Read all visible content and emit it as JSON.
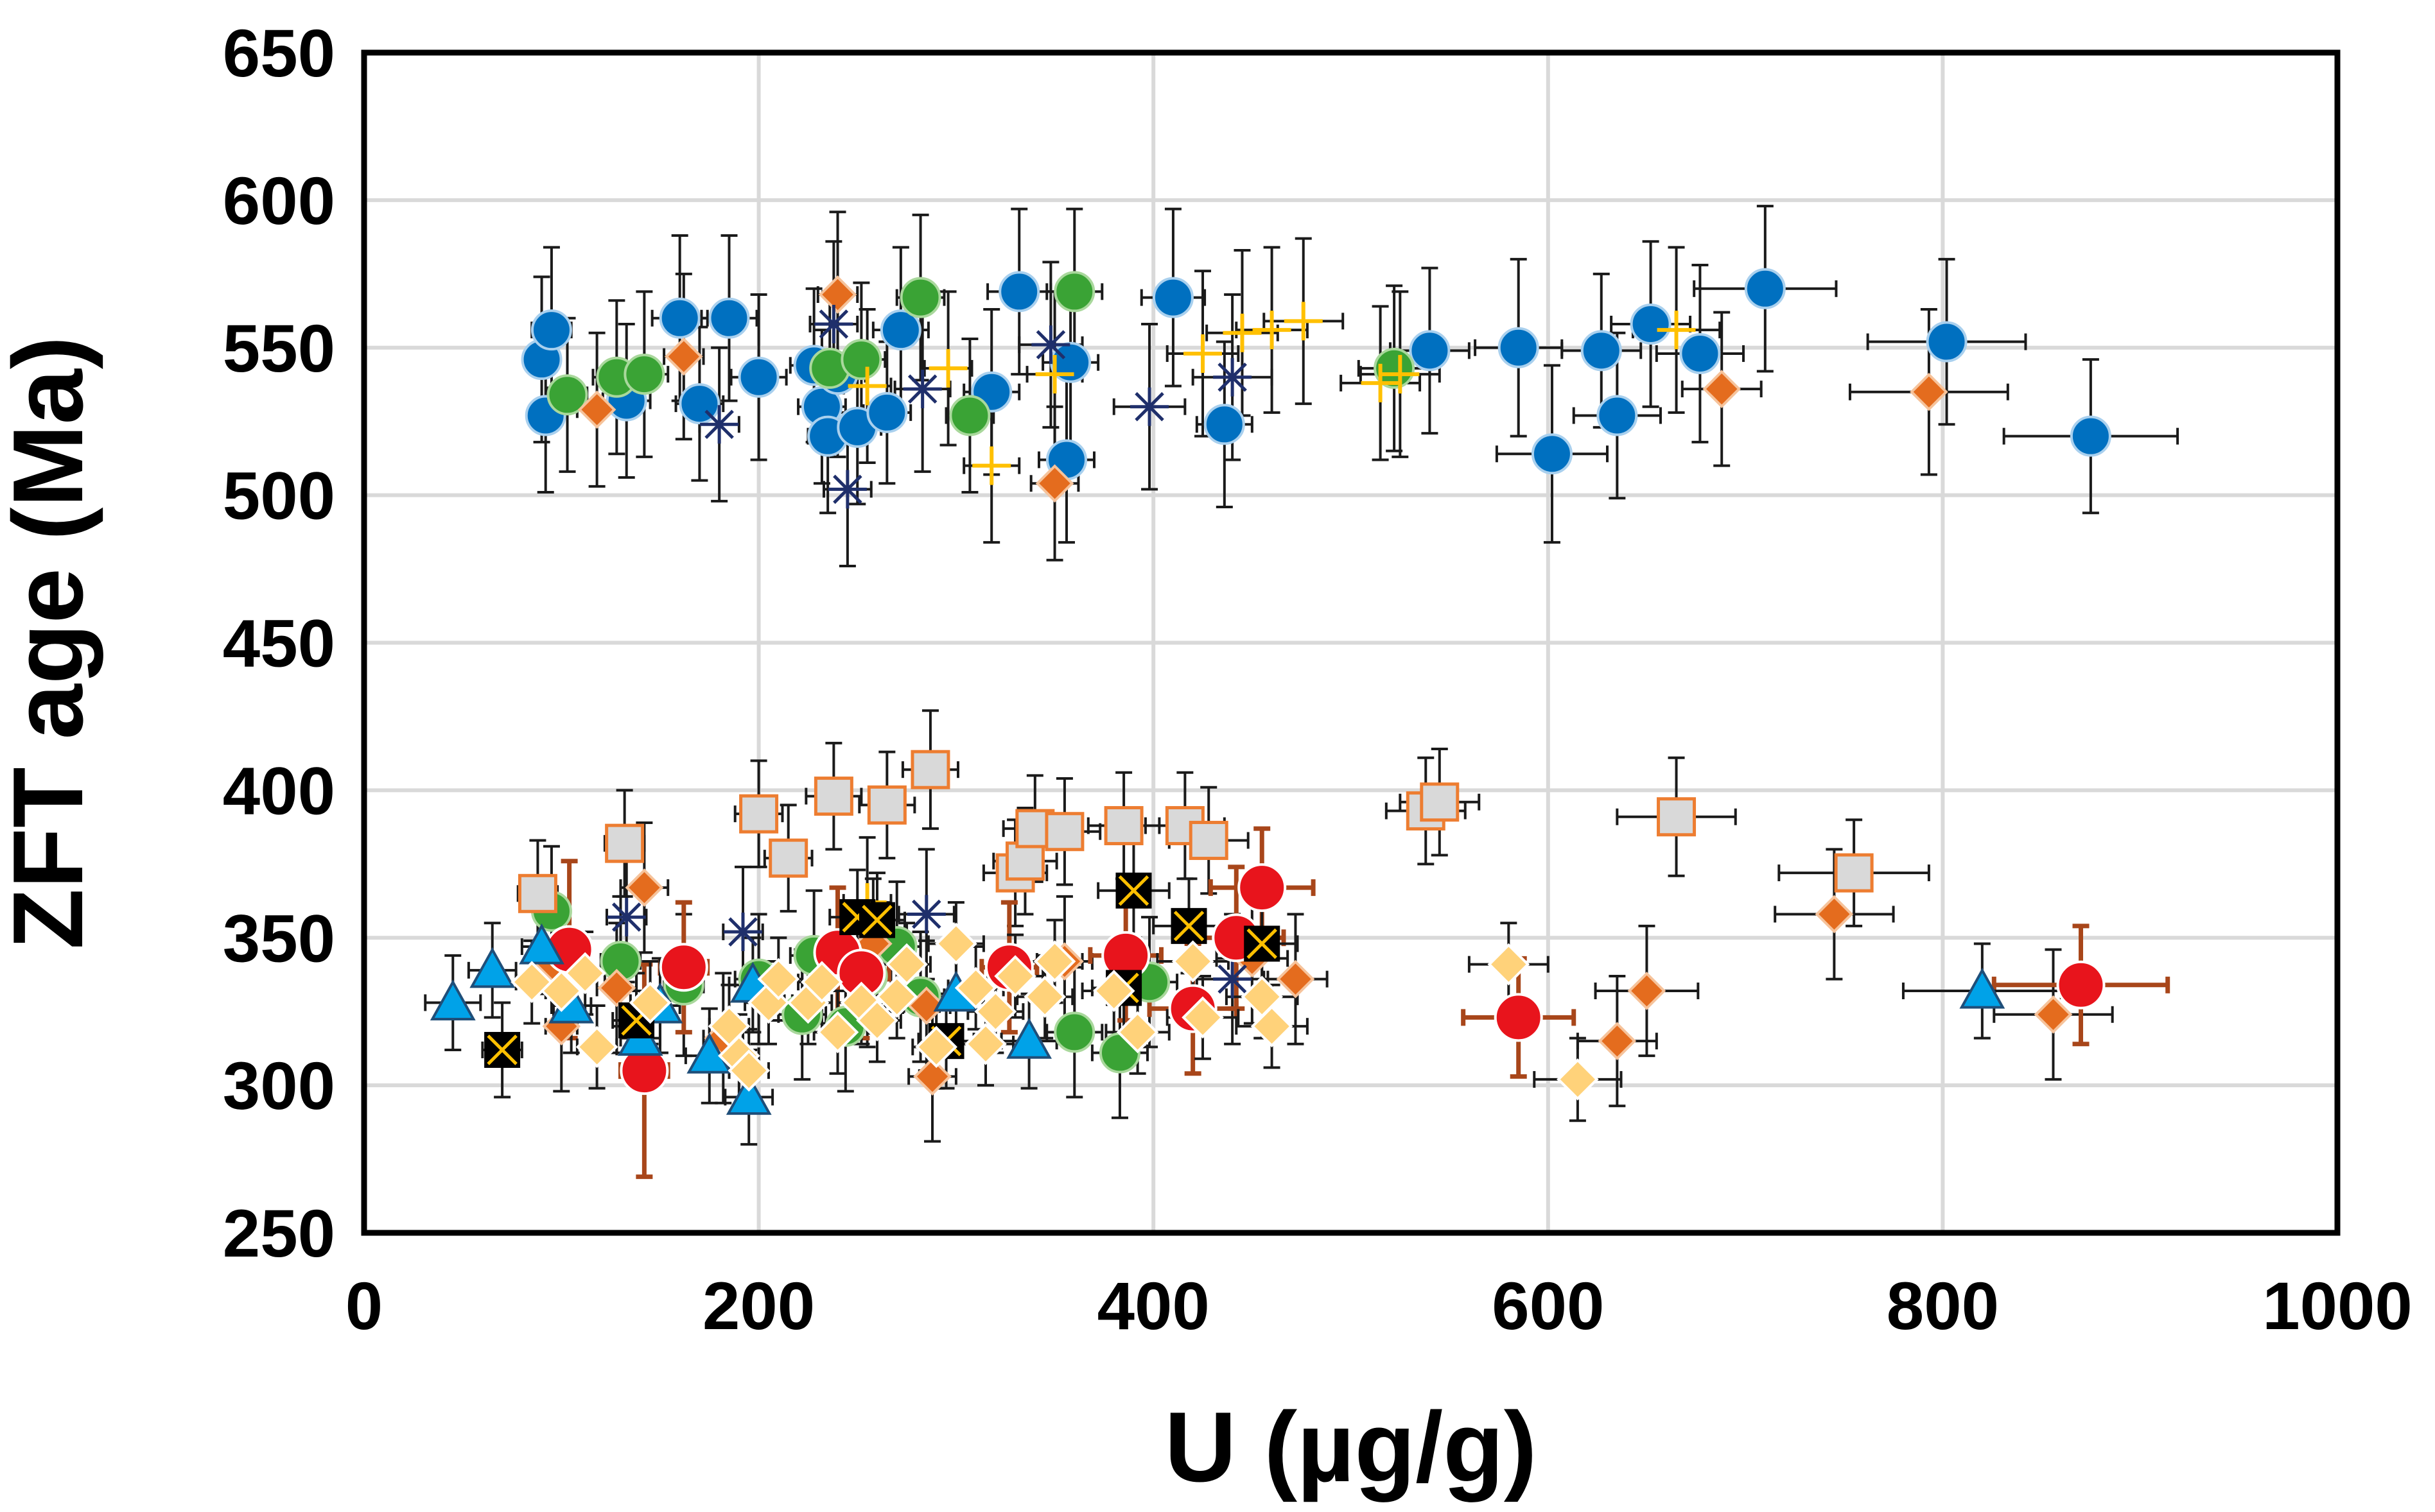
{
  "chart_data": {
    "type": "scatter",
    "title": "",
    "xlabel": "U (µg/g)",
    "ylabel": "ZFT age (Ma)",
    "xlim": [
      0,
      1000
    ],
    "ylim": [
      250,
      650
    ],
    "xticks": [
      "0",
      "200",
      "400",
      "600",
      "800",
      "1000"
    ],
    "yticks": [
      "250",
      "300",
      "350",
      "400",
      "450",
      "500",
      "550",
      "600",
      "650"
    ],
    "grid": true,
    "legend": "none",
    "series": [
      {
        "marker": "circle",
        "fill": "#0070C0",
        "stroke": "#A9D0EE",
        "points": [
          [
            90,
            546,
            8,
            28
          ],
          [
            92,
            527,
            8,
            26
          ],
          [
            95,
            556,
            10,
            28
          ],
          [
            133,
            532,
            12,
            26
          ],
          [
            160,
            560,
            14,
            28
          ],
          [
            170,
            531,
            12,
            26
          ],
          [
            185,
            560,
            14,
            28
          ],
          [
            200,
            540,
            14,
            28
          ],
          [
            228,
            544,
            12,
            26
          ],
          [
            232,
            530,
            12,
            26
          ],
          [
            235,
            520,
            10,
            26
          ],
          [
            240,
            541,
            14,
            28
          ],
          [
            250,
            523,
            12,
            26
          ],
          [
            265,
            528,
            12,
            24
          ],
          [
            272,
            556,
            14,
            28
          ],
          [
            318,
            535,
            14,
            28
          ],
          [
            332,
            569,
            16,
            28
          ],
          [
            356,
            512,
            14,
            28
          ],
          [
            358,
            545,
            14,
            28
          ],
          [
            410,
            567,
            16,
            30
          ],
          [
            436,
            524,
            14,
            28
          ],
          [
            540,
            549,
            20,
            28
          ],
          [
            585,
            550,
            22,
            30
          ],
          [
            602,
            514,
            28,
            30
          ],
          [
            627,
            549,
            20,
            26
          ],
          [
            635,
            527,
            22,
            28
          ],
          [
            652,
            558,
            20,
            28
          ],
          [
            677,
            548,
            22,
            30
          ],
          [
            710,
            570,
            36,
            28
          ],
          [
            802,
            552,
            40,
            28
          ],
          [
            875,
            520,
            44,
            26
          ]
        ]
      },
      {
        "marker": "circle",
        "fill": "#3AA335",
        "stroke": "#A9D89C",
        "points": [
          [
            103,
            534,
            10,
            26
          ],
          [
            128,
            540,
            12,
            26
          ],
          [
            142,
            541,
            12,
            28
          ],
          [
            236,
            543,
            12,
            26
          ],
          [
            252,
            546,
            12,
            26
          ],
          [
            282,
            567,
            12,
            28
          ],
          [
            307,
            527,
            12,
            26
          ],
          [
            360,
            569,
            14,
            28
          ],
          [
            522,
            543,
            18,
            28
          ],
          [
            95,
            359,
            8,
            22
          ],
          [
            130,
            342,
            10,
            22
          ],
          [
            162,
            334,
            10,
            24
          ],
          [
            200,
            336,
            12,
            22
          ],
          [
            222,
            324,
            12,
            22
          ],
          [
            228,
            344,
            12,
            22
          ],
          [
            244,
            320,
            12,
            22
          ],
          [
            255,
            337,
            12,
            24
          ],
          [
            270,
            347,
            12,
            22
          ],
          [
            282,
            330,
            12,
            22
          ],
          [
            360,
            318,
            14,
            22
          ],
          [
            383,
            311,
            14,
            22
          ],
          [
            398,
            335,
            14,
            22
          ]
        ]
      },
      {
        "marker": "diamond",
        "fill": "#E46C1E",
        "stroke": "#F6C39B",
        "points": [
          [
            118,
            529,
            10,
            26
          ],
          [
            162,
            547,
            10,
            28
          ],
          [
            240,
            568,
            10,
            28
          ],
          [
            350,
            504,
            12,
            26
          ],
          [
            688,
            536,
            20,
            26
          ],
          [
            793,
            535,
            40,
            28
          ],
          [
            96,
            341,
            8,
            22
          ],
          [
            100,
            320,
            8,
            22
          ],
          [
            128,
            333,
            10,
            22
          ],
          [
            142,
            367,
            12,
            22
          ],
          [
            182,
            316,
            10,
            22
          ],
          [
            258,
            348,
            12,
            22
          ],
          [
            285,
            327,
            12,
            22
          ],
          [
            288,
            303,
            12,
            22
          ],
          [
            355,
            342,
            14,
            22
          ],
          [
            450,
            343,
            18,
            22
          ],
          [
            472,
            336,
            16,
            22
          ],
          [
            635,
            315,
            20,
            22
          ],
          [
            650,
            332,
            26,
            22
          ],
          [
            745,
            358,
            30,
            22
          ],
          [
            856,
            324,
            30,
            22
          ]
        ]
      },
      {
        "marker": "star",
        "color": "#1F2F6B",
        "points": [
          [
            180,
            524,
            10,
            26
          ],
          [
            238,
            558,
            12,
            28
          ],
          [
            245,
            502,
            12,
            26
          ],
          [
            283,
            536,
            14,
            28
          ],
          [
            348,
            551,
            16,
            28
          ],
          [
            398,
            530,
            18,
            28
          ],
          [
            440,
            540,
            20,
            28
          ],
          [
            133,
            357,
            10,
            22
          ],
          [
            192,
            352,
            10,
            22
          ],
          [
            285,
            358,
            14,
            22
          ],
          [
            440,
            336,
            18,
            22
          ]
        ]
      },
      {
        "marker": "plus",
        "color": "#FFC000",
        "points": [
          [
            255,
            537,
            12,
            26
          ],
          [
            296,
            543,
            12,
            26
          ],
          [
            318,
            510,
            14,
            26
          ],
          [
            350,
            541,
            14,
            28
          ],
          [
            425,
            548,
            18,
            28
          ],
          [
            445,
            555,
            18,
            28
          ],
          [
            460,
            556,
            18,
            28
          ],
          [
            476,
            559,
            20,
            28
          ],
          [
            515,
            538,
            20,
            26
          ],
          [
            525,
            541,
            20,
            28
          ],
          [
            665,
            556,
            22,
            28
          ],
          [
            255,
            362,
            12,
            22
          ]
        ]
      },
      {
        "marker": "square",
        "fill": "#D9D9D9",
        "stroke": "#ED7D31",
        "points": [
          [
            88,
            365,
            10,
            18
          ],
          [
            132,
            382,
            10,
            18
          ],
          [
            200,
            392,
            12,
            18
          ],
          [
            215,
            377,
            12,
            18
          ],
          [
            238,
            398,
            14,
            18
          ],
          [
            265,
            395,
            14,
            18
          ],
          [
            287,
            407,
            14,
            20
          ],
          [
            330,
            372,
            16,
            18
          ],
          [
            335,
            376,
            16,
            18
          ],
          [
            340,
            387,
            16,
            18
          ],
          [
            355,
            386,
            18,
            18
          ],
          [
            385,
            388,
            18,
            18
          ],
          [
            416,
            388,
            20,
            18
          ],
          [
            428,
            383,
            20,
            18
          ],
          [
            538,
            393,
            20,
            18
          ],
          [
            545,
            396,
            20,
            18
          ],
          [
            665,
            391,
            30,
            20
          ],
          [
            755,
            372,
            38,
            18
          ]
        ]
      },
      {
        "marker": "circle",
        "fill": "#E8141C",
        "stroke": "#FFFFFF",
        "errcolor": "#A8461A",
        "points": [
          [
            104,
            346,
            10,
            30
          ],
          [
            142,
            305,
            12,
            36
          ],
          [
            162,
            340,
            12,
            22
          ],
          [
            240,
            345,
            14,
            22
          ],
          [
            252,
            338,
            14,
            22
          ],
          [
            327,
            340,
            14,
            22
          ],
          [
            386,
            344,
            18,
            22
          ],
          [
            420,
            326,
            22,
            22
          ],
          [
            442,
            350,
            24,
            24
          ],
          [
            455,
            367,
            26,
            20
          ],
          [
            585,
            323,
            28,
            20
          ],
          [
            870,
            334,
            44,
            20
          ]
        ]
      },
      {
        "marker": "triangle",
        "fill": "#00A2E8",
        "stroke": "#1F4E79",
        "points": [
          [
            45,
            328,
            14,
            16
          ],
          [
            65,
            339,
            12,
            16
          ],
          [
            90,
            347,
            10,
            16
          ],
          [
            105,
            327,
            10,
            16
          ],
          [
            140,
            316,
            10,
            16
          ],
          [
            150,
            327,
            10,
            16
          ],
          [
            175,
            310,
            12,
            16
          ],
          [
            195,
            296,
            12,
            16
          ],
          [
            197,
            334,
            12,
            16
          ],
          [
            300,
            331,
            14,
            16
          ],
          [
            337,
            315,
            14,
            16
          ],
          [
            820,
            332,
            40,
            16
          ]
        ]
      },
      {
        "marker": "squarex",
        "fill": "#000000",
        "stroke": "#FFC000",
        "points": [
          [
            70,
            312,
            10,
            16
          ],
          [
            138,
            322,
            12,
            16
          ],
          [
            250,
            357,
            14,
            16
          ],
          [
            260,
            356,
            14,
            16
          ],
          [
            295,
            315,
            14,
            16
          ],
          [
            385,
            333,
            16,
            16
          ],
          [
            390,
            366,
            18,
            16
          ],
          [
            418,
            354,
            18,
            16
          ],
          [
            455,
            348,
            18,
            16
          ]
        ]
      },
      {
        "marker": "diamond",
        "fill": "#FFD27A",
        "stroke": "#FFFFFF",
        "points": [
          [
            85,
            335,
            8,
            14
          ],
          [
            100,
            332,
            8,
            14
          ],
          [
            112,
            338,
            10,
            14
          ],
          [
            118,
            313,
            10,
            14
          ],
          [
            145,
            328,
            10,
            14
          ],
          [
            185,
            320,
            10,
            14
          ],
          [
            190,
            310,
            10,
            14
          ],
          [
            195,
            305,
            10,
            14
          ],
          [
            205,
            328,
            12,
            14
          ],
          [
            210,
            336,
            12,
            14
          ],
          [
            225,
            328,
            12,
            14
          ],
          [
            232,
            335,
            12,
            14
          ],
          [
            240,
            318,
            12,
            14
          ],
          [
            252,
            328,
            12,
            14
          ],
          [
            260,
            322,
            12,
            14
          ],
          [
            270,
            330,
            12,
            14
          ],
          [
            275,
            341,
            12,
            14
          ],
          [
            290,
            313,
            12,
            14
          ],
          [
            300,
            348,
            14,
            14
          ],
          [
            310,
            333,
            14,
            14
          ],
          [
            315,
            314,
            14,
            14
          ],
          [
            320,
            325,
            14,
            14
          ],
          [
            330,
            337,
            14,
            14
          ],
          [
            345,
            330,
            14,
            14
          ],
          [
            350,
            342,
            14,
            14
          ],
          [
            380,
            332,
            16,
            14
          ],
          [
            392,
            318,
            16,
            14
          ],
          [
            420,
            342,
            18,
            14
          ],
          [
            425,
            323,
            18,
            14
          ],
          [
            455,
            330,
            18,
            14
          ],
          [
            460,
            320,
            18,
            14
          ],
          [
            580,
            341,
            20,
            14
          ],
          [
            615,
            302,
            22,
            14
          ]
        ]
      }
    ]
  }
}
